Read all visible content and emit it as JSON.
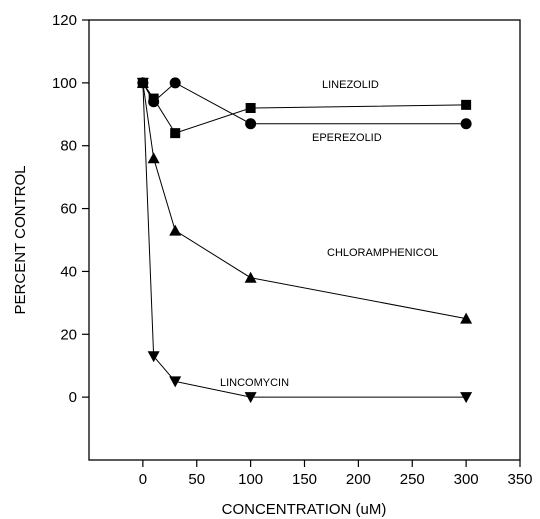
{
  "chart_data": {
    "type": "line",
    "xlabel": "CONCENTRATION (uM)",
    "ylabel": "PERCENT CONTROL",
    "xlim": [
      -50,
      350
    ],
    "ylim": [
      -20,
      120
    ],
    "xticks": [
      0,
      50,
      100,
      150,
      200,
      250,
      300,
      350
    ],
    "yticks": [
      0,
      20,
      40,
      60,
      80,
      100,
      120
    ],
    "grid": false,
    "legend": "none",
    "series": [
      {
        "name": "LINEZOLID",
        "marker": "square",
        "x": [
          0,
          10,
          30,
          100,
          300
        ],
        "y": [
          100,
          95,
          84,
          92,
          93
        ]
      },
      {
        "name": "EPEREZOLID",
        "marker": "circle",
        "x": [
          0,
          10,
          30,
          100,
          300
        ],
        "y": [
          100,
          94,
          100,
          87,
          87
        ]
      },
      {
        "name": "CHLORAMPHENICOL",
        "marker": "triangle-up",
        "x": [
          0,
          10,
          30,
          100,
          300
        ],
        "y": [
          100,
          76,
          53,
          38,
          25
        ]
      },
      {
        "name": "LINCOMYCIN",
        "marker": "triangle-down",
        "x": [
          0,
          10,
          30,
          100,
          300
        ],
        "y": [
          100,
          13,
          5,
          0,
          0
        ]
      }
    ],
    "annotations": [
      {
        "text": "LINEZOLID",
        "series": 0
      },
      {
        "text": "EPEREZOLID",
        "series": 1
      },
      {
        "text": "CHLORAMPHENICOL",
        "series": 2
      },
      {
        "text": "LINCOMYCIN",
        "series": 3
      }
    ]
  }
}
